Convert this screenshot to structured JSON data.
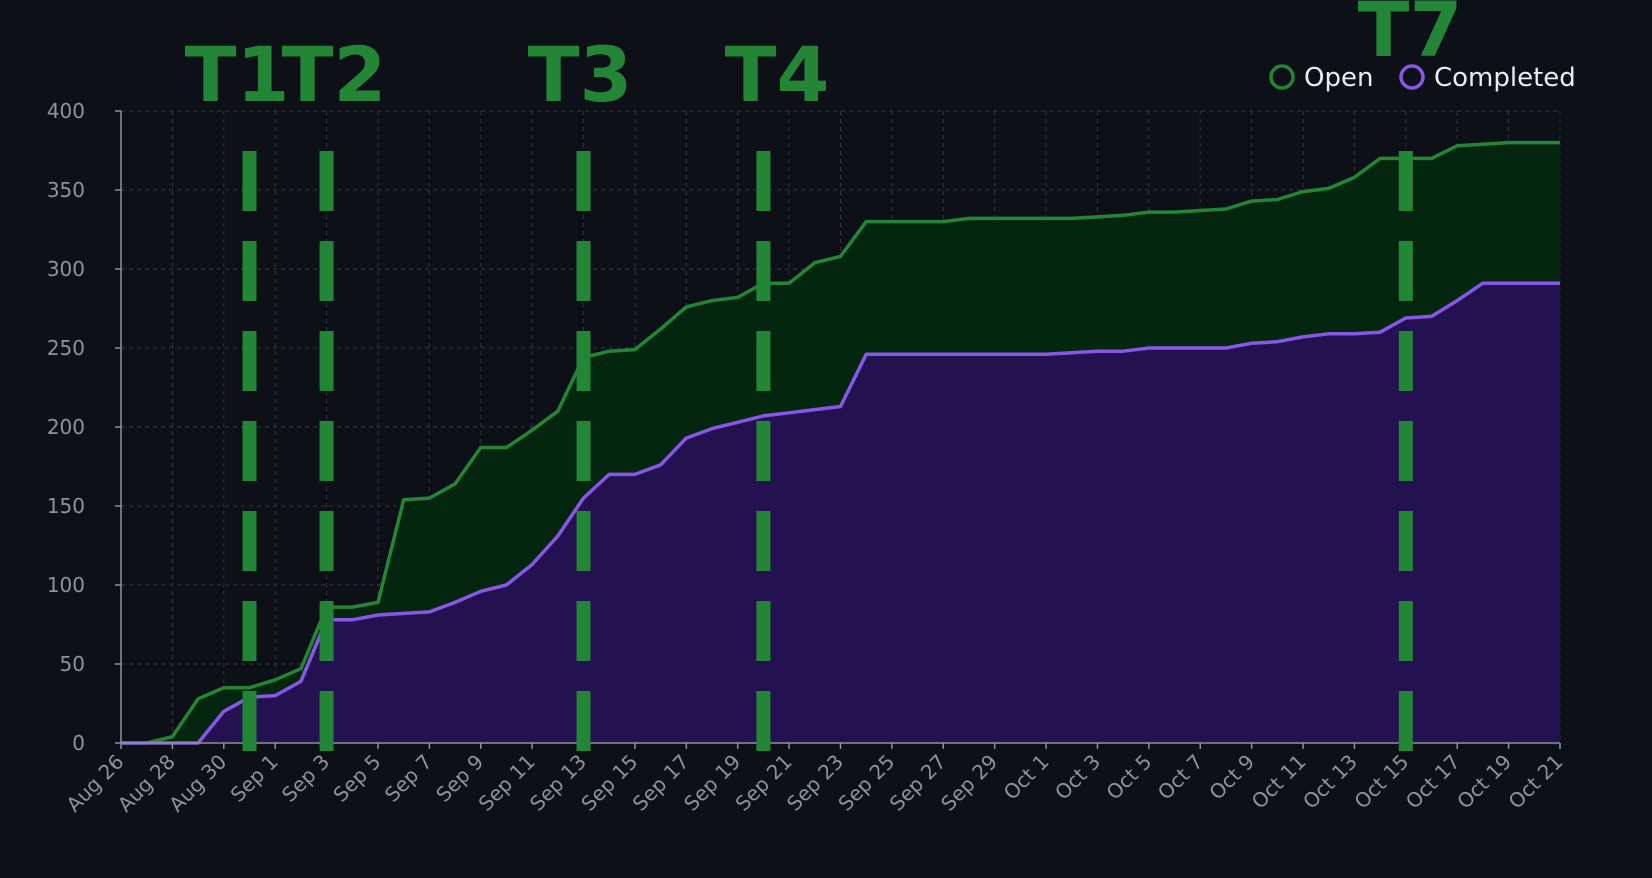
{
  "chart_data": {
    "type": "area",
    "title": "",
    "xlabel": "",
    "ylabel": "",
    "ylim": [
      0,
      400
    ],
    "y_ticks": [
      "0",
      "50",
      "100",
      "150",
      "200",
      "250",
      "300",
      "350",
      "400"
    ],
    "x_ticks": [
      "Aug 26",
      "Aug 28",
      "Aug 30",
      "Sep 1",
      "Sep 3",
      "Sep 5",
      "Sep 7",
      "Sep 9",
      "Sep 11",
      "Sep 13",
      "Sep 15",
      "Sep 17",
      "Sep 19",
      "Sep 21",
      "Sep 23",
      "Sep 25",
      "Sep 27",
      "Sep 29",
      "Oct 1",
      "Oct 3",
      "Oct 5",
      "Oct 7",
      "Oct 9",
      "Oct 11",
      "Oct 13",
      "Oct 15",
      "Oct 17",
      "Oct 19",
      "Oct 21"
    ],
    "x": [
      "Aug 26",
      "Aug 27",
      "Aug 28",
      "Aug 29",
      "Aug 30",
      "Aug 31",
      "Sep 1",
      "Sep 2",
      "Sep 3",
      "Sep 4",
      "Sep 5",
      "Sep 6",
      "Sep 7",
      "Sep 8",
      "Sep 9",
      "Sep 10",
      "Sep 11",
      "Sep 12",
      "Sep 13",
      "Sep 14",
      "Sep 15",
      "Sep 16",
      "Sep 17",
      "Sep 18",
      "Sep 19",
      "Sep 20",
      "Sep 21",
      "Sep 22",
      "Sep 23",
      "Sep 24",
      "Sep 25",
      "Sep 26",
      "Sep 27",
      "Sep 28",
      "Sep 29",
      "Sep 30",
      "Oct 1",
      "Oct 2",
      "Oct 3",
      "Oct 4",
      "Oct 5",
      "Oct 6",
      "Oct 7",
      "Oct 8",
      "Oct 9",
      "Oct 10",
      "Oct 11",
      "Oct 12",
      "Oct 13",
      "Oct 14",
      "Oct 15",
      "Oct 16",
      "Oct 17",
      "Oct 18",
      "Oct 19",
      "Oct 20",
      "Oct 21"
    ],
    "series": [
      {
        "name": "Open",
        "color": "#238636",
        "fill": "#04260f",
        "values": [
          0,
          0,
          4,
          28,
          35,
          35,
          40,
          47,
          86,
          86,
          89,
          154,
          155,
          164,
          187,
          187,
          198,
          210,
          244,
          248,
          249,
          262,
          276,
          280,
          282,
          291,
          291,
          304,
          308,
          330,
          330,
          330,
          330,
          332,
          332,
          332,
          332,
          332,
          333,
          334,
          336,
          336,
          337,
          338,
          343,
          344,
          349,
          351,
          358,
          370,
          370,
          370,
          378,
          379,
          380,
          380,
          380
        ]
      },
      {
        "name": "Completed",
        "color": "#8957e5",
        "fill": "#231150",
        "values": [
          0,
          0,
          0,
          0,
          20,
          29,
          30,
          39,
          78,
          78,
          81,
          82,
          83,
          89,
          96,
          100,
          113,
          131,
          155,
          170,
          170,
          176,
          193,
          199,
          203,
          207,
          209,
          211,
          213,
          246,
          246,
          246,
          246,
          246,
          246,
          246,
          246,
          247,
          248,
          248,
          250,
          250,
          250,
          250,
          253,
          254,
          257,
          259,
          259,
          260,
          269,
          270,
          280,
          291,
          291,
          291,
          291
        ]
      }
    ],
    "markers": [
      {
        "label": "T1",
        "x": "Aug 31"
      },
      {
        "label": "T2",
        "x": "Sep 3"
      },
      {
        "label": "T3",
        "x": "Sep 13"
      },
      {
        "label": "T4",
        "x": "Sep 20"
      },
      {
        "label": "T7",
        "x": "Oct 15"
      }
    ],
    "marker_color": "#238636",
    "grid": true,
    "legend_position": "top-right",
    "colors": {
      "background": "#0d1117",
      "axis": "#8b949e",
      "grid": "#30363d"
    }
  }
}
